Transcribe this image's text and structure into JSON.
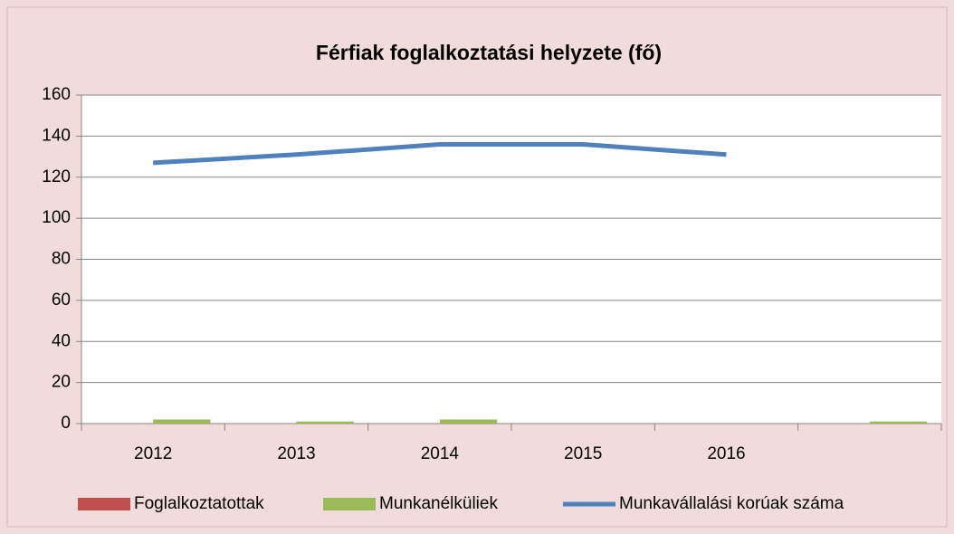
{
  "chart_data": {
    "type": "bar",
    "title": "Férfiak foglalkoztatási helyzete (fő)",
    "categories": [
      "2012",
      "2013",
      "2014",
      "2015",
      "2016",
      null
    ],
    "series": [
      {
        "name": "Foglalkoztatottak",
        "color": "#c0504d",
        "values": [
          0,
          0,
          0,
          0,
          0,
          0
        ]
      },
      {
        "name": "Munkanélküliek",
        "color": "#9bbb59",
        "values": [
          2,
          1,
          2,
          0,
          0,
          1
        ]
      },
      {
        "name": "Munkavállalási korúak száma",
        "color": "#4f81bd",
        "type": "line",
        "values": [
          127,
          131,
          136,
          136,
          131,
          null
        ]
      }
    ],
    "ylim": [
      0,
      160
    ],
    "yticks": [
      0,
      20,
      40,
      60,
      80,
      100,
      120,
      140,
      160
    ],
    "grid": true,
    "legend": "bottom"
  }
}
